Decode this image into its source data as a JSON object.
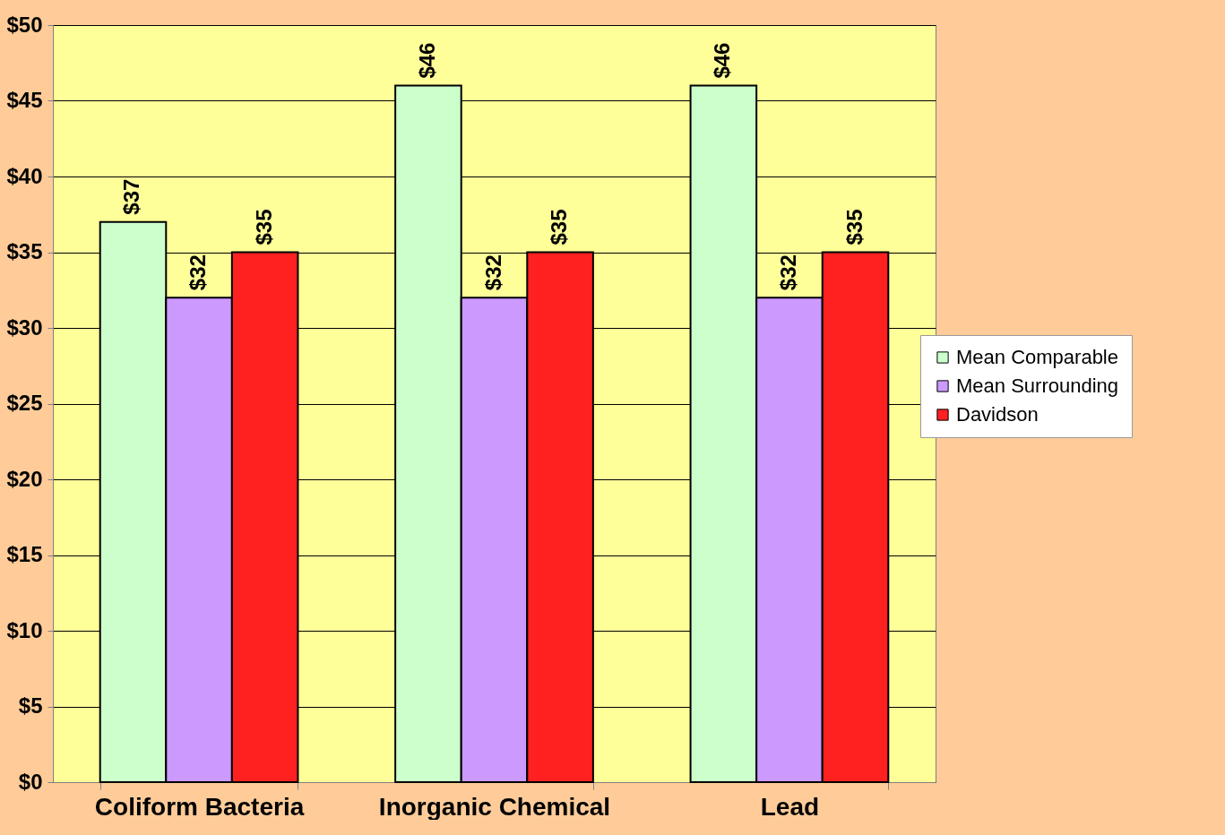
{
  "chart_data": {
    "type": "bar",
    "categories": [
      "Coliform Bacteria",
      "Inorganic Chemical",
      "Lead"
    ],
    "series": [
      {
        "name": "Mean Comparable",
        "color": "#ccffcc",
        "values": [
          37,
          46,
          46
        ],
        "value_labels": [
          "$37",
          "$46",
          "$46"
        ]
      },
      {
        "name": "Mean Surrounding",
        "color": "#cc99ff",
        "values": [
          32,
          32,
          32
        ],
        "value_labels": [
          "$32",
          "$32",
          "$32"
        ]
      },
      {
        "name": "Davidson",
        "color": "#ff2020",
        "values": [
          35,
          35,
          35
        ],
        "value_labels": [
          "$35",
          "$35",
          "$35"
        ]
      }
    ],
    "ylim": [
      0,
      50
    ],
    "yticks": [
      {
        "value": 0,
        "label": "$0"
      },
      {
        "value": 5,
        "label": "$5"
      },
      {
        "value": 10,
        "label": "$10"
      },
      {
        "value": 15,
        "label": "$15"
      },
      {
        "value": 20,
        "label": "$20"
      },
      {
        "value": 25,
        "label": "$25"
      },
      {
        "value": 30,
        "label": "$30"
      },
      {
        "value": 35,
        "label": "$35"
      },
      {
        "value": 40,
        "label": "$40"
      },
      {
        "value": 45,
        "label": "$45"
      },
      {
        "value": 50,
        "label": "$50"
      }
    ],
    "grid": "y",
    "legend": "right"
  }
}
